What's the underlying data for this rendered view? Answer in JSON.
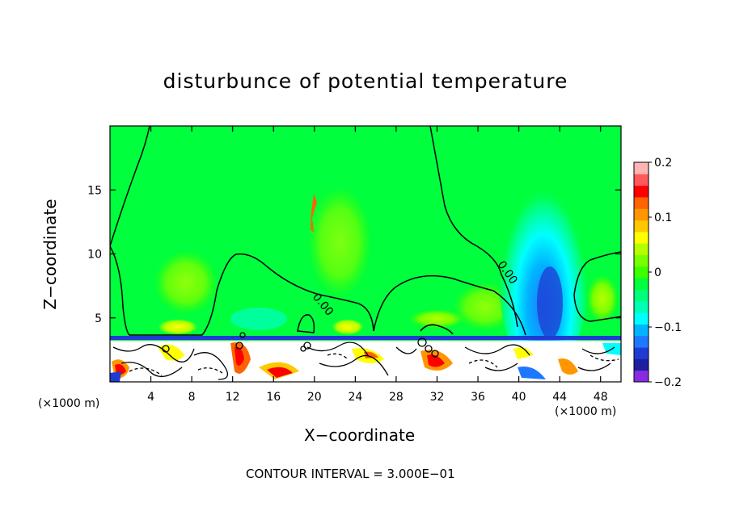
{
  "chart_data": {
    "type": "heatmap",
    "title": "disturbunce of potential temperature",
    "xlabel": "X−coordinate",
    "ylabel": "Z−coordinate",
    "x_unit": "(×1000 m)",
    "x_ticks": [
      "4",
      "8",
      "12",
      "16",
      "20",
      "24",
      "28",
      "32",
      "36",
      "40",
      "44",
      "48"
    ],
    "x_tick_values": [
      4,
      8,
      12,
      16,
      20,
      24,
      28,
      32,
      36,
      40,
      44,
      48
    ],
    "y_ticks": [
      "5",
      "10",
      "15"
    ],
    "y_tick_values": [
      5,
      10,
      15
    ],
    "xlim": [
      0,
      50
    ],
    "ylim": [
      0,
      20
    ],
    "colorbar": {
      "min": -0.2,
      "max": 0.2,
      "tick_labels": [
        "0.2",
        "0.1",
        "0",
        "−0.1",
        "−0.2"
      ],
      "tick_values": [
        0.2,
        0.1,
        0,
        -0.1,
        -0.2
      ],
      "colors": [
        "#8a2be2",
        "#1e1ea0",
        "#1e3cd2",
        "#1e78ff",
        "#00b4ff",
        "#00ffff",
        "#00ffb4",
        "#00ff78",
        "#00ff3c",
        "#3cff00",
        "#78ff00",
        "#b4ff00",
        "#ffff00",
        "#ffc800",
        "#ff9600",
        "#ff6400",
        "#ff0000",
        "#ff5a5a",
        "#ffb4b4"
      ]
    },
    "contour_labels": [
      "0.00",
      "0.00"
    ],
    "contour_note": "CONTOUR INTERVAL = 3.000E−01"
  }
}
